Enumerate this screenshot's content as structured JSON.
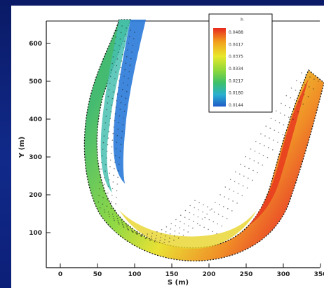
{
  "slide": {
    "background_color": "#0d1d6e"
  },
  "chart_data": {
    "type": "heatmap",
    "title": "",
    "xlabel": "S (m)",
    "ylabel": "Y (m)",
    "x_tick_labels": [
      "0",
      "50",
      "100",
      "150",
      "200",
      "250",
      "300",
      "350"
    ],
    "y_tick_labels": [
      "600",
      "500",
      "400",
      "300",
      "200",
      "100"
    ],
    "legend": {
      "title": "h",
      "entries": [
        "0.0488",
        "0.0417",
        "0.0375",
        "0.0334",
        "0.0217",
        "0.0180",
        "0.0144"
      ],
      "colors": [
        "#e8281e",
        "#f2a21c",
        "#e8e82a",
        "#8ed83a",
        "#3cc06a",
        "#2ab0d0",
        "#1e5ac8"
      ]
    },
    "grid": false
  }
}
